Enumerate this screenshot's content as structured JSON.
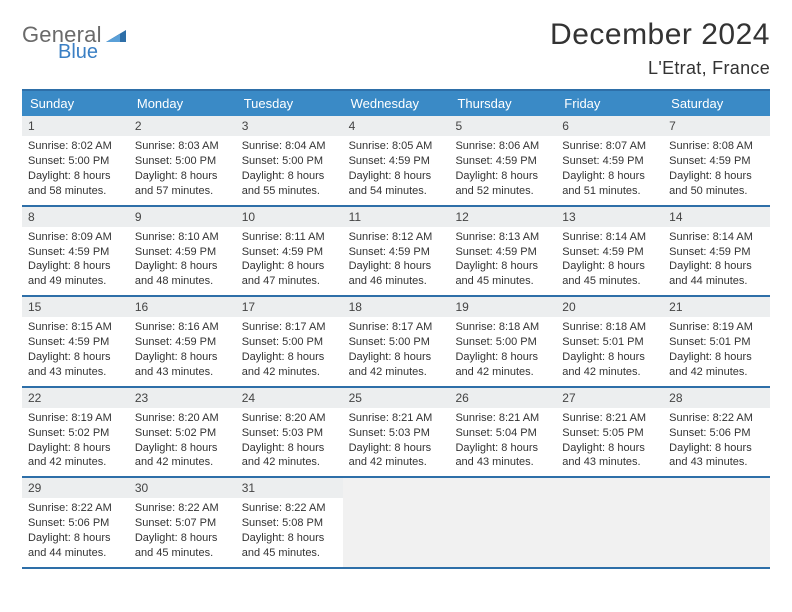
{
  "logo": {
    "text1": "General",
    "text2": "Blue",
    "color_general": "#6a6a6a",
    "color_blue": "#3a7fc4",
    "triangle_color": "#2e6fa8"
  },
  "title": "December 2024",
  "location": "L'Etrat, France",
  "colors": {
    "header_bg": "#3a8ac6",
    "header_text": "#ffffff",
    "rule": "#2e6fa8",
    "daynum_bg": "#eceeef",
    "empty_bg": "#f1f1f1",
    "text": "#333333"
  },
  "fonts": {
    "title_size": 30,
    "location_size": 18,
    "header_size": 13,
    "cell_size": 11
  },
  "day_headers": [
    "Sunday",
    "Monday",
    "Tuesday",
    "Wednesday",
    "Thursday",
    "Friday",
    "Saturday"
  ],
  "weeks": [
    [
      {
        "n": "1",
        "sr": "Sunrise: 8:02 AM",
        "ss": "Sunset: 5:00 PM",
        "d1": "Daylight: 8 hours",
        "d2": "and 58 minutes."
      },
      {
        "n": "2",
        "sr": "Sunrise: 8:03 AM",
        "ss": "Sunset: 5:00 PM",
        "d1": "Daylight: 8 hours",
        "d2": "and 57 minutes."
      },
      {
        "n": "3",
        "sr": "Sunrise: 8:04 AM",
        "ss": "Sunset: 5:00 PM",
        "d1": "Daylight: 8 hours",
        "d2": "and 55 minutes."
      },
      {
        "n": "4",
        "sr": "Sunrise: 8:05 AM",
        "ss": "Sunset: 4:59 PM",
        "d1": "Daylight: 8 hours",
        "d2": "and 54 minutes."
      },
      {
        "n": "5",
        "sr": "Sunrise: 8:06 AM",
        "ss": "Sunset: 4:59 PM",
        "d1": "Daylight: 8 hours",
        "d2": "and 52 minutes."
      },
      {
        "n": "6",
        "sr": "Sunrise: 8:07 AM",
        "ss": "Sunset: 4:59 PM",
        "d1": "Daylight: 8 hours",
        "d2": "and 51 minutes."
      },
      {
        "n": "7",
        "sr": "Sunrise: 8:08 AM",
        "ss": "Sunset: 4:59 PM",
        "d1": "Daylight: 8 hours",
        "d2": "and 50 minutes."
      }
    ],
    [
      {
        "n": "8",
        "sr": "Sunrise: 8:09 AM",
        "ss": "Sunset: 4:59 PM",
        "d1": "Daylight: 8 hours",
        "d2": "and 49 minutes."
      },
      {
        "n": "9",
        "sr": "Sunrise: 8:10 AM",
        "ss": "Sunset: 4:59 PM",
        "d1": "Daylight: 8 hours",
        "d2": "and 48 minutes."
      },
      {
        "n": "10",
        "sr": "Sunrise: 8:11 AM",
        "ss": "Sunset: 4:59 PM",
        "d1": "Daylight: 8 hours",
        "d2": "and 47 minutes."
      },
      {
        "n": "11",
        "sr": "Sunrise: 8:12 AM",
        "ss": "Sunset: 4:59 PM",
        "d1": "Daylight: 8 hours",
        "d2": "and 46 minutes."
      },
      {
        "n": "12",
        "sr": "Sunrise: 8:13 AM",
        "ss": "Sunset: 4:59 PM",
        "d1": "Daylight: 8 hours",
        "d2": "and 45 minutes."
      },
      {
        "n": "13",
        "sr": "Sunrise: 8:14 AM",
        "ss": "Sunset: 4:59 PM",
        "d1": "Daylight: 8 hours",
        "d2": "and 45 minutes."
      },
      {
        "n": "14",
        "sr": "Sunrise: 8:14 AM",
        "ss": "Sunset: 4:59 PM",
        "d1": "Daylight: 8 hours",
        "d2": "and 44 minutes."
      }
    ],
    [
      {
        "n": "15",
        "sr": "Sunrise: 8:15 AM",
        "ss": "Sunset: 4:59 PM",
        "d1": "Daylight: 8 hours",
        "d2": "and 43 minutes."
      },
      {
        "n": "16",
        "sr": "Sunrise: 8:16 AM",
        "ss": "Sunset: 4:59 PM",
        "d1": "Daylight: 8 hours",
        "d2": "and 43 minutes."
      },
      {
        "n": "17",
        "sr": "Sunrise: 8:17 AM",
        "ss": "Sunset: 5:00 PM",
        "d1": "Daylight: 8 hours",
        "d2": "and 42 minutes."
      },
      {
        "n": "18",
        "sr": "Sunrise: 8:17 AM",
        "ss": "Sunset: 5:00 PM",
        "d1": "Daylight: 8 hours",
        "d2": "and 42 minutes."
      },
      {
        "n": "19",
        "sr": "Sunrise: 8:18 AM",
        "ss": "Sunset: 5:00 PM",
        "d1": "Daylight: 8 hours",
        "d2": "and 42 minutes."
      },
      {
        "n": "20",
        "sr": "Sunrise: 8:18 AM",
        "ss": "Sunset: 5:01 PM",
        "d1": "Daylight: 8 hours",
        "d2": "and 42 minutes."
      },
      {
        "n": "21",
        "sr": "Sunrise: 8:19 AM",
        "ss": "Sunset: 5:01 PM",
        "d1": "Daylight: 8 hours",
        "d2": "and 42 minutes."
      }
    ],
    [
      {
        "n": "22",
        "sr": "Sunrise: 8:19 AM",
        "ss": "Sunset: 5:02 PM",
        "d1": "Daylight: 8 hours",
        "d2": "and 42 minutes."
      },
      {
        "n": "23",
        "sr": "Sunrise: 8:20 AM",
        "ss": "Sunset: 5:02 PM",
        "d1": "Daylight: 8 hours",
        "d2": "and 42 minutes."
      },
      {
        "n": "24",
        "sr": "Sunrise: 8:20 AM",
        "ss": "Sunset: 5:03 PM",
        "d1": "Daylight: 8 hours",
        "d2": "and 42 minutes."
      },
      {
        "n": "25",
        "sr": "Sunrise: 8:21 AM",
        "ss": "Sunset: 5:03 PM",
        "d1": "Daylight: 8 hours",
        "d2": "and 42 minutes."
      },
      {
        "n": "26",
        "sr": "Sunrise: 8:21 AM",
        "ss": "Sunset: 5:04 PM",
        "d1": "Daylight: 8 hours",
        "d2": "and 43 minutes."
      },
      {
        "n": "27",
        "sr": "Sunrise: 8:21 AM",
        "ss": "Sunset: 5:05 PM",
        "d1": "Daylight: 8 hours",
        "d2": "and 43 minutes."
      },
      {
        "n": "28",
        "sr": "Sunrise: 8:22 AM",
        "ss": "Sunset: 5:06 PM",
        "d1": "Daylight: 8 hours",
        "d2": "and 43 minutes."
      }
    ],
    [
      {
        "n": "29",
        "sr": "Sunrise: 8:22 AM",
        "ss": "Sunset: 5:06 PM",
        "d1": "Daylight: 8 hours",
        "d2": "and 44 minutes."
      },
      {
        "n": "30",
        "sr": "Sunrise: 8:22 AM",
        "ss": "Sunset: 5:07 PM",
        "d1": "Daylight: 8 hours",
        "d2": "and 45 minutes."
      },
      {
        "n": "31",
        "sr": "Sunrise: 8:22 AM",
        "ss": "Sunset: 5:08 PM",
        "d1": "Daylight: 8 hours",
        "d2": "and 45 minutes."
      },
      null,
      null,
      null,
      null
    ]
  ]
}
